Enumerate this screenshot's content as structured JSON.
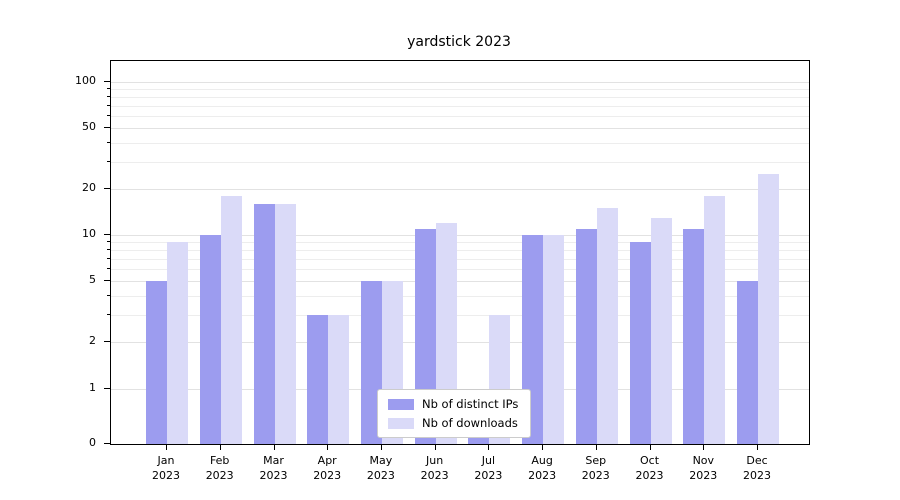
{
  "chart_data": {
    "type": "bar",
    "title": "yardstick 2023",
    "categories": [
      "Jan\n2023",
      "Feb\n2023",
      "Mar\n2023",
      "Apr\n2023",
      "May\n2023",
      "Jun\n2023",
      "Jul\n2023",
      "Aug\n2023",
      "Sep\n2023",
      "Oct\n2023",
      "Nov\n2023",
      "Dec\n2023"
    ],
    "series": [
      {
        "name": "Nb of distinct IPs",
        "color": "#9c9cef",
        "values": [
          5,
          10,
          16,
          3,
          5,
          11,
          1,
          10,
          11,
          9,
          11,
          5
        ]
      },
      {
        "name": "Nb of downloads",
        "color": "#dadaf8",
        "values": [
          9,
          18,
          16,
          3,
          5,
          12,
          3,
          10,
          15,
          13,
          18,
          25
        ]
      }
    ],
    "yticks": [
      0,
      1,
      2,
      5,
      10,
      20,
      50,
      100
    ],
    "scale": "symlog",
    "ylim": [
      0,
      100
    ],
    "xlabel": "",
    "ylabel": "",
    "grid": "horizontal",
    "legend_position": "lower center"
  }
}
